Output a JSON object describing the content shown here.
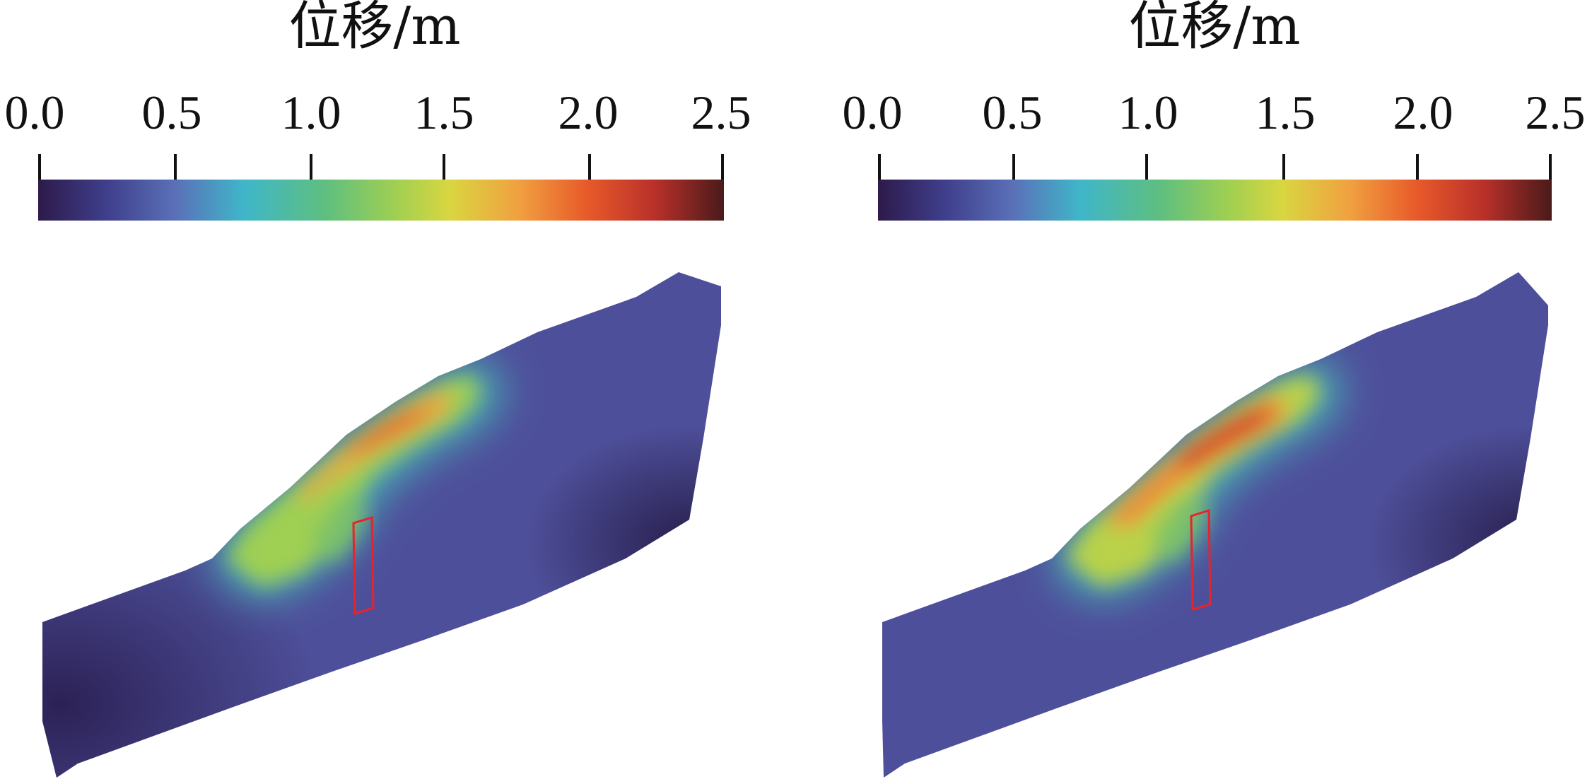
{
  "figure": {
    "description_type": "FEM slope displacement contour comparison",
    "panels": [
      {
        "id": "left",
        "colorbar": {
          "title": "位移/m",
          "ticks": [
            "0.0",
            "0.5",
            "1.0",
            "1.5",
            "2.0",
            "2.5"
          ],
          "range": [
            0.0,
            2.5
          ]
        }
      },
      {
        "id": "right",
        "colorbar": {
          "title": "位移/m",
          "ticks": [
            "0.0",
            "0.5",
            "1.0",
            "1.5",
            "2.0",
            "2.5"
          ],
          "range": [
            0.0,
            2.5
          ]
        }
      }
    ],
    "colormap": [
      "#2d1a4a",
      "#3f3f8c",
      "#5a70b8",
      "#3fb6c9",
      "#5fbf7f",
      "#9fcf52",
      "#d9d640",
      "#f0a140",
      "#e85a2a",
      "#b8302a",
      "#4a1a1a"
    ],
    "colors": {
      "slope_base": "#4e4f9a",
      "slope_dark": "#32265e",
      "pile_outline": "#e8232a"
    }
  }
}
